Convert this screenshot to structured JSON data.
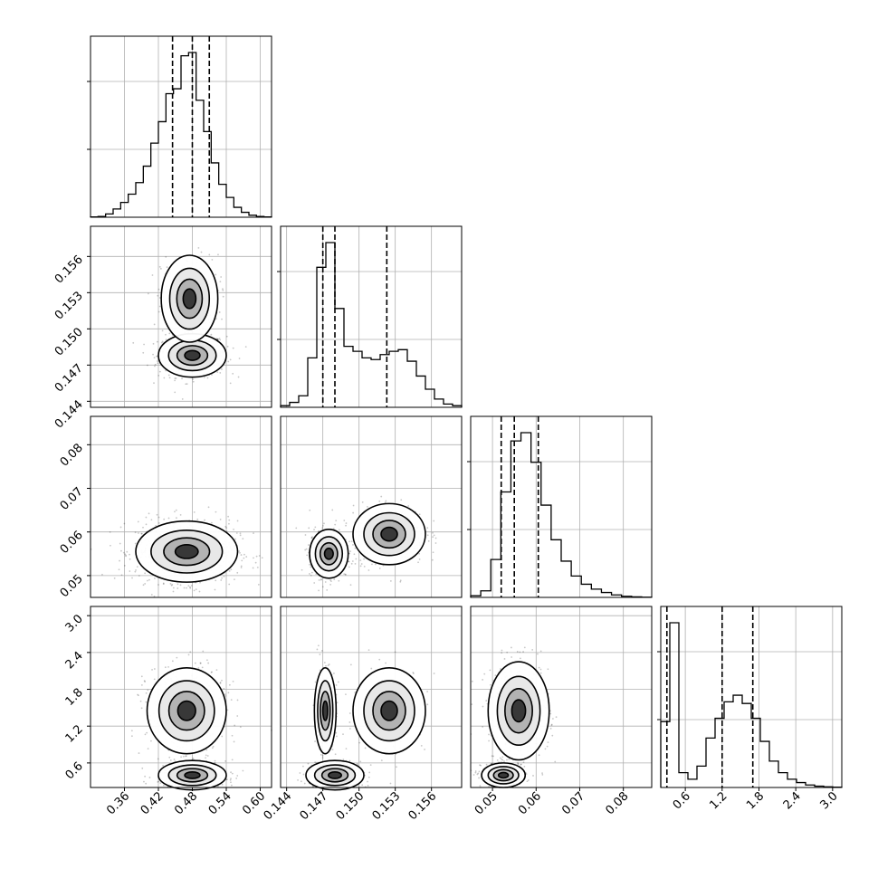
{
  "chart_data": {
    "type": "corner",
    "grid": true,
    "parameters": [
      {
        "range": [
          0.3,
          0.62
        ],
        "ticks": [
          "0.36",
          "0.42",
          "0.48",
          "0.54",
          "0.60"
        ],
        "tick_values": [
          0.36,
          0.42,
          0.48,
          0.54,
          0.6
        ],
        "quantiles": [
          0.445,
          0.48,
          0.51
        ],
        "histogram": [
          0.002,
          0.005,
          0.02,
          0.05,
          0.09,
          0.14,
          0.21,
          0.31,
          0.45,
          0.58,
          0.75,
          0.78,
          0.98,
          1.0,
          0.71,
          0.52,
          0.33,
          0.2,
          0.12,
          0.06,
          0.03,
          0.012,
          0.005,
          0.002
        ]
      },
      {
        "range": [
          0.1435,
          0.1585
        ],
        "ticks": [
          "0.144",
          "0.147",
          "0.150",
          "0.153",
          "0.156"
        ],
        "tick_values": [
          0.144,
          0.147,
          0.15,
          0.153,
          0.156
        ],
        "quantiles": [
          0.147,
          0.148,
          0.1523
        ],
        "histogram": [
          0.01,
          0.03,
          0.07,
          0.3,
          0.85,
          1.0,
          0.6,
          0.37,
          0.34,
          0.3,
          0.29,
          0.32,
          0.34,
          0.35,
          0.28,
          0.19,
          0.11,
          0.05,
          0.02,
          0.01
        ]
      },
      {
        "range": [
          0.045,
          0.0865
        ],
        "ticks": [
          "0.05",
          "0.06",
          "0.07",
          "0.08"
        ],
        "tick_values": [
          0.05,
          0.06,
          0.07,
          0.08
        ],
        "quantiles": [
          0.052,
          0.055,
          0.0605
        ],
        "histogram": [
          0.01,
          0.04,
          0.23,
          0.64,
          0.95,
          1.0,
          0.82,
          0.56,
          0.35,
          0.22,
          0.13,
          0.08,
          0.05,
          0.03,
          0.015,
          0.007,
          0.003,
          0.001
        ]
      },
      {
        "range": [
          0.2,
          3.15
        ],
        "ticks": [
          "0.6",
          "1.2",
          "1.8",
          "2.4",
          "3.0"
        ],
        "tick_values": [
          0.6,
          1.2,
          1.8,
          2.4,
          3.0
        ],
        "quantiles": [
          0.3,
          1.2,
          1.7
        ],
        "histogram": [
          0.4,
          1.0,
          0.09,
          0.05,
          0.13,
          0.3,
          0.42,
          0.52,
          0.56,
          0.51,
          0.42,
          0.28,
          0.16,
          0.09,
          0.05,
          0.03,
          0.015,
          0.008,
          0.004,
          0.002
        ]
      }
    ],
    "joint_modes": [
      {
        "row": 1,
        "col": 0,
        "modes": [
          {
            "mean": [
              0.48,
              0.1478
            ],
            "sd": [
              0.03,
              0.0009
            ],
            "w": 0.6
          },
          {
            "mean": [
              0.475,
              0.1525
            ],
            "sd": [
              0.025,
              0.0018
            ],
            "w": 0.4
          }
        ]
      },
      {
        "row": 2,
        "col": 0,
        "modes": [
          {
            "mean": [
              0.47,
              0.0555
            ],
            "sd": [
              0.045,
              0.0035
            ],
            "w": 1.0
          }
        ]
      },
      {
        "row": 2,
        "col": 1,
        "modes": [
          {
            "mean": [
              0.1475,
              0.055
            ],
            "sd": [
              0.0008,
              0.0028
            ],
            "w": 0.6
          },
          {
            "mean": [
              0.1525,
              0.0595
            ],
            "sd": [
              0.0015,
              0.0035
            ],
            "w": 0.4
          }
        ]
      },
      {
        "row": 3,
        "col": 0,
        "modes": [
          {
            "mean": [
              0.48,
              0.4
            ],
            "sd": [
              0.03,
              0.12
            ],
            "w": 0.45
          },
          {
            "mean": [
              0.47,
              1.45
            ],
            "sd": [
              0.035,
              0.35
            ],
            "w": 0.55
          }
        ]
      },
      {
        "row": 3,
        "col": 1,
        "modes": [
          {
            "mean": [
              0.148,
              0.4
            ],
            "sd": [
              0.0012,
              0.12
            ],
            "w": 0.45
          },
          {
            "mean": [
              0.1472,
              1.45
            ],
            "sd": [
              0.00045,
              0.35
            ],
            "w": 0.3
          },
          {
            "mean": [
              0.1525,
              1.45
            ],
            "sd": [
              0.0015,
              0.35
            ],
            "w": 0.25
          }
        ]
      },
      {
        "row": 3,
        "col": 2,
        "modes": [
          {
            "mean": [
              0.0525,
              0.4
            ],
            "sd": [
              0.0025,
              0.1
            ],
            "w": 0.45
          },
          {
            "mean": [
              0.056,
              1.45
            ],
            "sd": [
              0.0035,
              0.4
            ],
            "w": 0.55
          }
        ]
      }
    ]
  }
}
